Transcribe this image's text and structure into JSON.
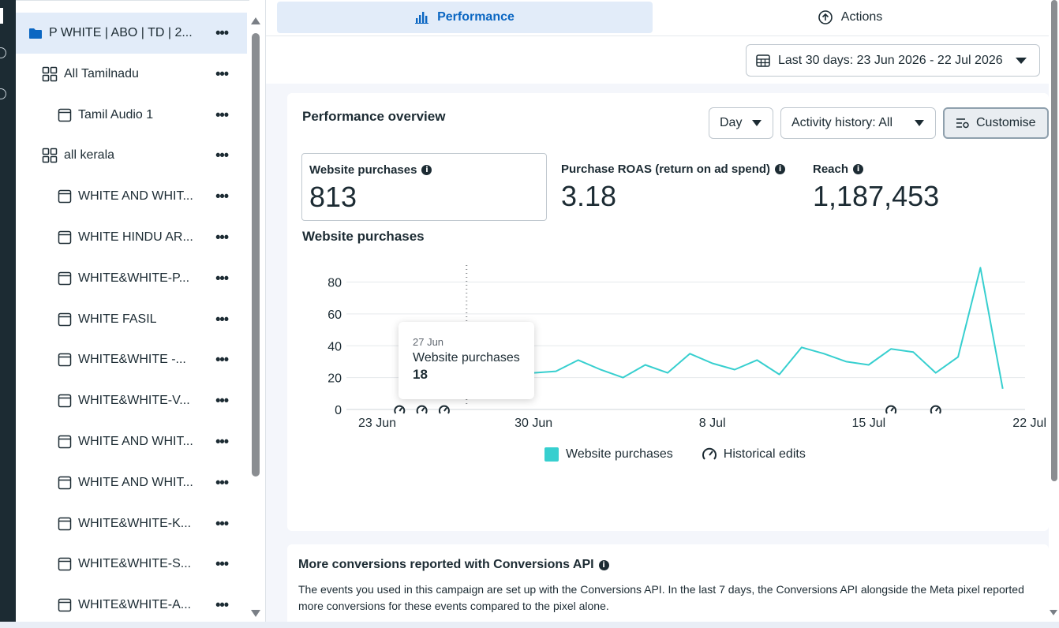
{
  "tree": {
    "items": [
      {
        "label": "P WHITE | ABO | TD | 2...",
        "kind": "campaign",
        "indent": 0,
        "selected": true
      },
      {
        "label": "All Tamilnadu",
        "kind": "adset",
        "indent": 1
      },
      {
        "label": "Tamil Audio 1",
        "kind": "ad",
        "indent": 2
      },
      {
        "label": "all kerala",
        "kind": "adset",
        "indent": 1
      },
      {
        "label": "WHITE AND WHIT...",
        "kind": "ad",
        "indent": 2
      },
      {
        "label": "WHITE HINDU AR...",
        "kind": "ad",
        "indent": 2
      },
      {
        "label": "WHITE&WHITE-P...",
        "kind": "ad",
        "indent": 2
      },
      {
        "label": "WHITE FASIL",
        "kind": "ad",
        "indent": 2
      },
      {
        "label": "WHITE&WHITE -...",
        "kind": "ad",
        "indent": 2
      },
      {
        "label": "WHITE&WHITE-V...",
        "kind": "ad",
        "indent": 2
      },
      {
        "label": "WHITE AND WHIT...",
        "kind": "ad",
        "indent": 2
      },
      {
        "label": "WHITE AND WHIT...",
        "kind": "ad",
        "indent": 2
      },
      {
        "label": "WHITE&WHITE-K...",
        "kind": "ad",
        "indent": 2
      },
      {
        "label": "WHITE&WHITE-S...",
        "kind": "ad",
        "indent": 2
      },
      {
        "label": "WHITE&WHITE-A...",
        "kind": "ad",
        "indent": 2
      }
    ],
    "more_label": "•••"
  },
  "tabs": {
    "performance": "Performance",
    "actions": "Actions"
  },
  "date_range": "Last 30 days: 23 Jun 2026 - 22 Jul 2026",
  "overview": {
    "title": "Performance overview",
    "day_label": "Day",
    "history_label": "Activity history: All",
    "customise_label": "Customise"
  },
  "kpis": [
    {
      "label": "Website purchases",
      "value": "813"
    },
    {
      "label": "Purchase ROAS (return on ad spend)",
      "value": "3.18"
    },
    {
      "label": "Reach",
      "value": "1,187,453"
    }
  ],
  "chart_title": "Website purchases",
  "tooltip": {
    "date": "27 Jun",
    "metric": "Website purchases",
    "value": "18"
  },
  "legend": {
    "series": "Website purchases",
    "edits": "Historical edits"
  },
  "chart_data": {
    "type": "line",
    "title": "Website purchases",
    "xlabel": "",
    "ylabel": "",
    "ylim": [
      0,
      90
    ],
    "yticks": [
      0,
      20,
      40,
      60,
      80
    ],
    "xticks": [
      "23 Jun",
      "30 Jun",
      "8 Jul",
      "15 Jul",
      "22 Jul"
    ],
    "x": [
      "23 Jun",
      "24 Jun",
      "25 Jun",
      "26 Jun",
      "27 Jun",
      "28 Jun",
      "29 Jun",
      "30 Jun",
      "1 Jul",
      "2 Jul",
      "3 Jul",
      "4 Jul",
      "5 Jul",
      "6 Jul",
      "7 Jul",
      "8 Jul",
      "9 Jul",
      "10 Jul",
      "11 Jul",
      "12 Jul",
      "13 Jul",
      "14 Jul",
      "15 Jul",
      "16 Jul",
      "17 Jul",
      "18 Jul",
      "19 Jul",
      "20 Jul",
      "21 Jul",
      "22 Jul"
    ],
    "series": [
      {
        "name": "Website purchases",
        "color": "#37cfcf",
        "values": [
          null,
          null,
          null,
          null,
          18,
          19,
          20,
          23,
          24,
          31,
          25,
          20,
          28,
          23,
          35,
          29,
          25,
          31,
          22,
          39,
          35,
          30,
          28,
          38,
          36,
          23,
          33,
          89,
          13,
          null
        ]
      }
    ],
    "historical_edit_dates": [
      "24 Jun",
      "25 Jun",
      "26 Jun",
      "16 Jul",
      "18 Jul"
    ],
    "grid": true
  },
  "capi": {
    "title": "More conversions reported with Conversions API",
    "body": "The events you used in this campaign are set up with the Conversions API. In the last 7 days, the Conversions API alongside the Meta pixel reported more conversions for these events compared to the pixel alone."
  },
  "colors": {
    "accent": "#0a66c2",
    "line": "#37cfcf",
    "selected_bg": "#e2ecf9"
  }
}
